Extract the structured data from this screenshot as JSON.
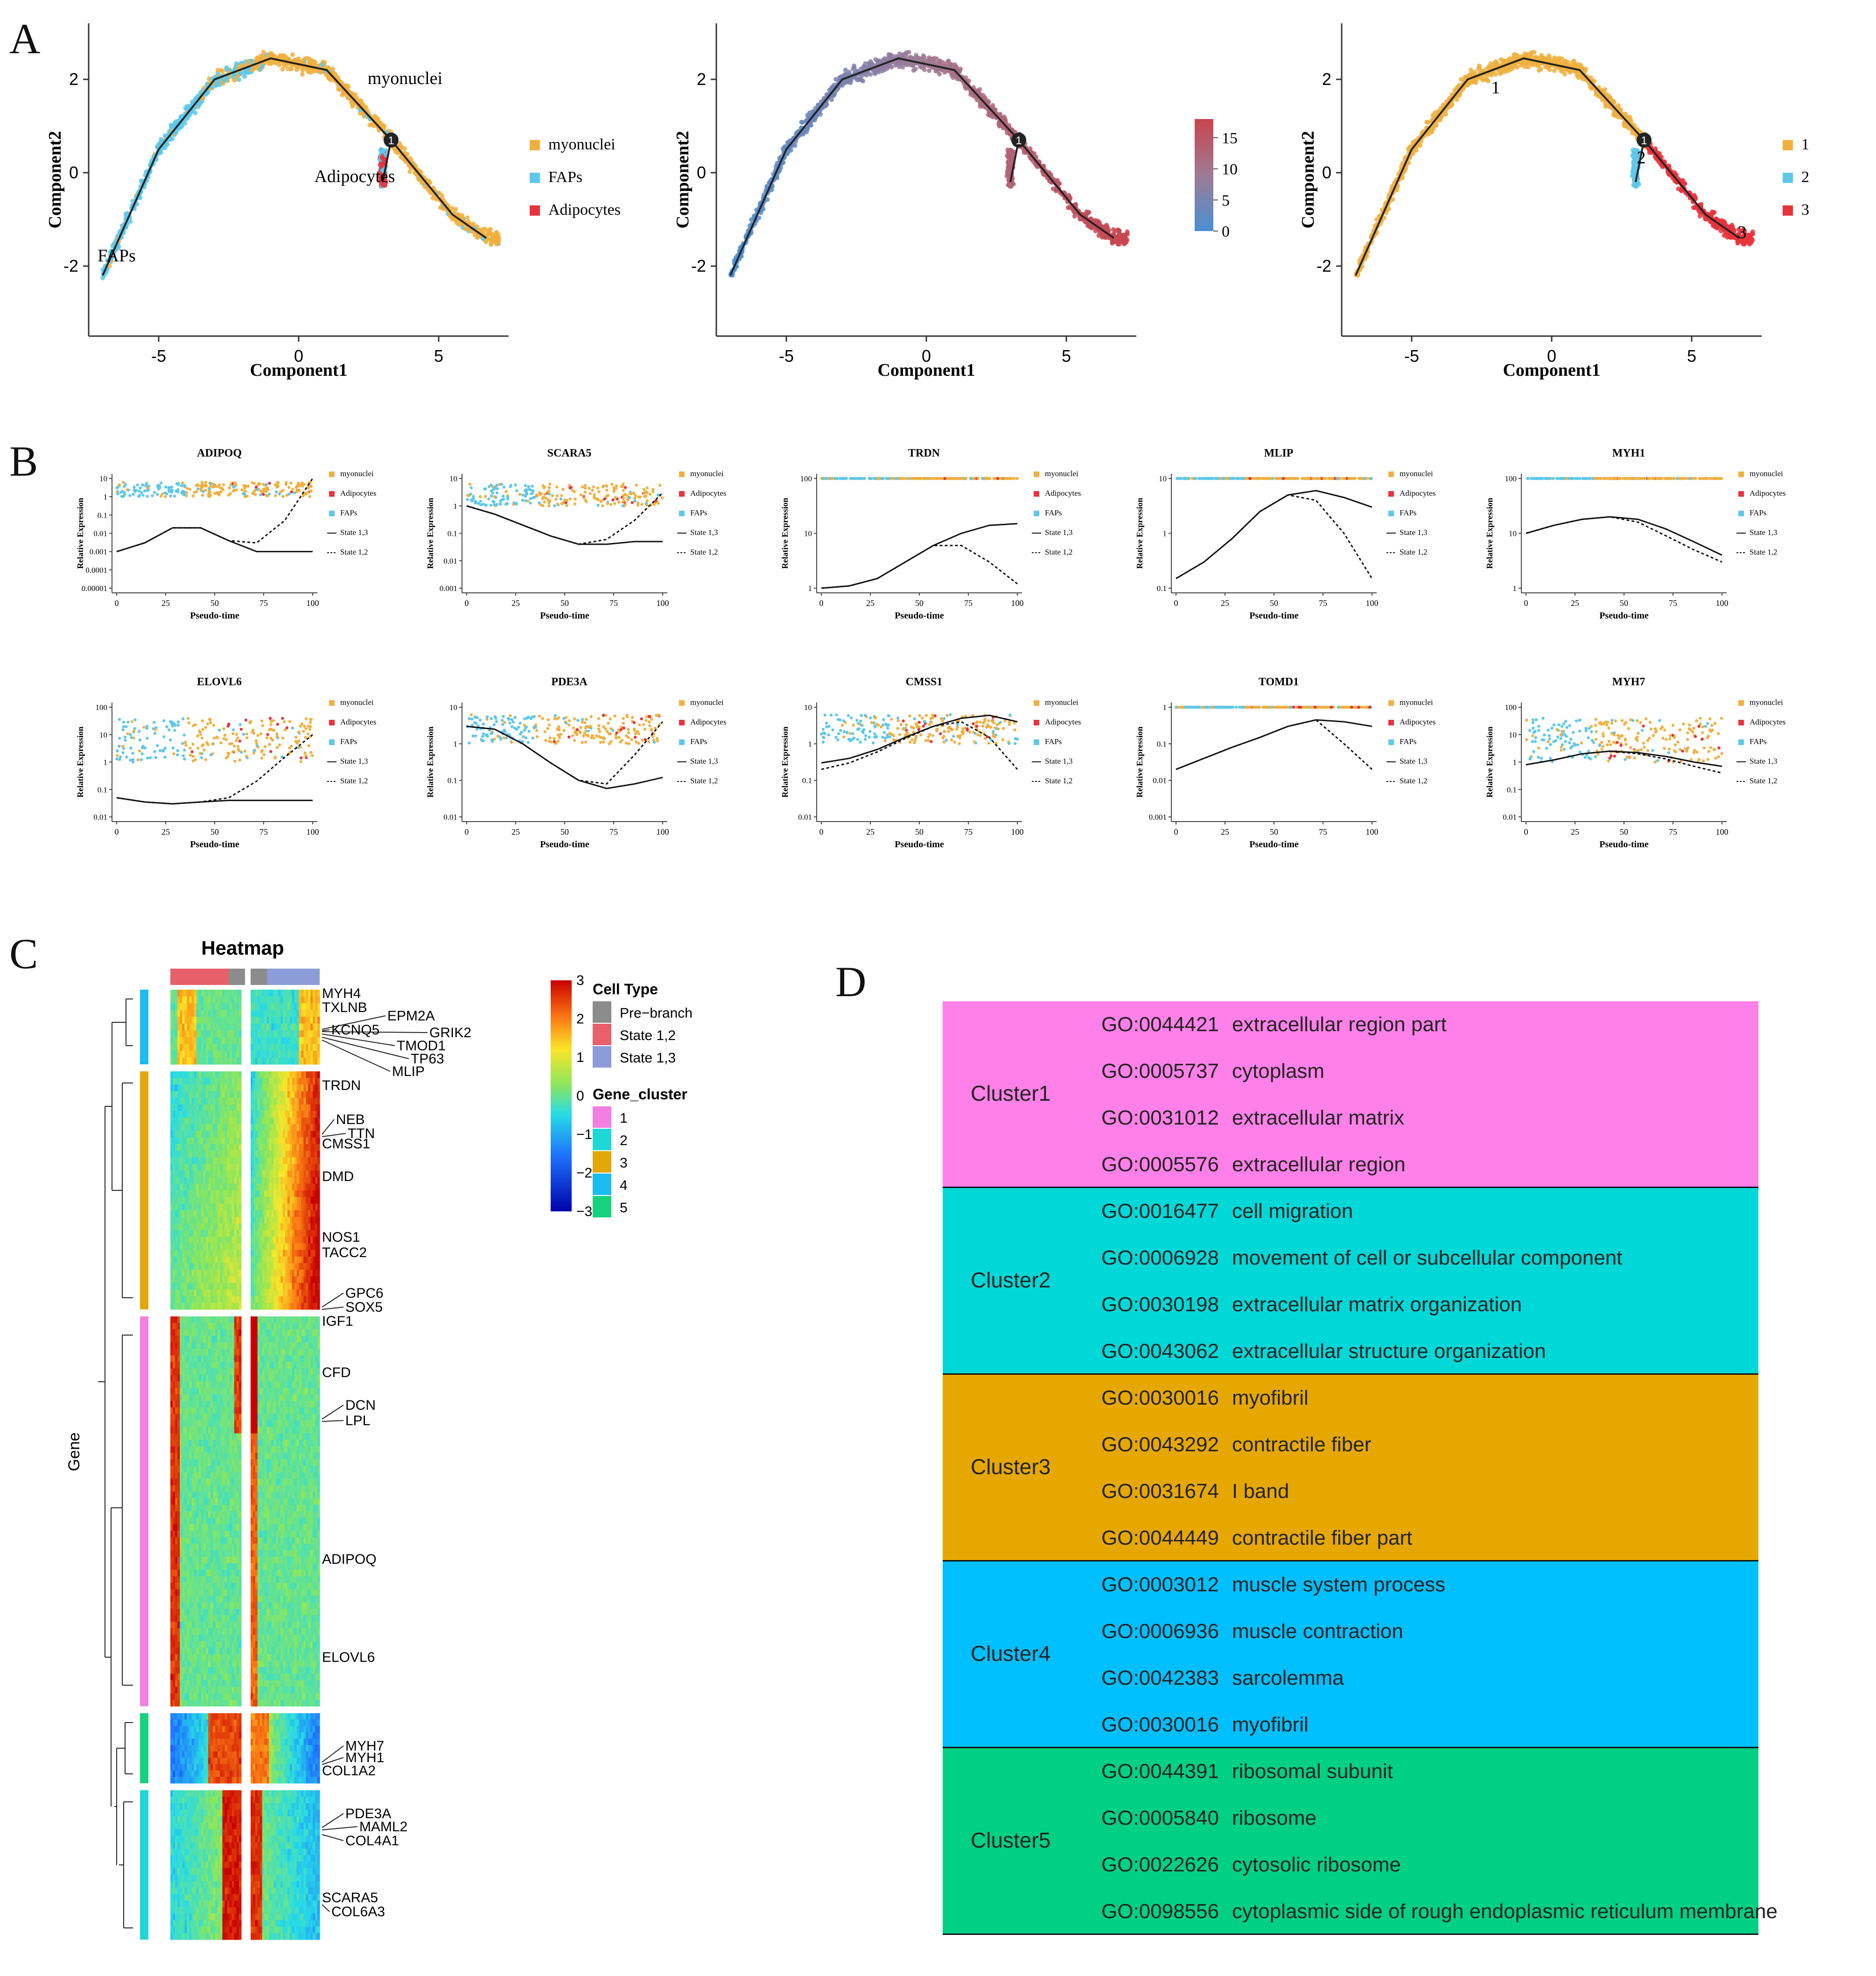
{
  "figure": {
    "panel_labels": [
      "A",
      "B",
      "C",
      "D"
    ]
  },
  "chart_data": [
    {
      "id": "A1",
      "type": "scatter",
      "title": "",
      "xlabel": "Component1",
      "ylabel": "Component2",
      "xlim": [
        -7.5,
        7.5
      ],
      "ylim": [
        -3.5,
        3.2
      ],
      "xticks": [
        -5,
        0,
        5
      ],
      "yticks": [
        -2,
        0,
        2
      ],
      "color_by": "cell type",
      "legend": [
        {
          "label": "myonuclei",
          "color": "#F0B040"
        },
        {
          "label": "FAPs",
          "color": "#5DC8EA"
        },
        {
          "label": "Adipocytes",
          "color": "#E8323C"
        }
      ],
      "annotations": [
        {
          "text": "myonuclei",
          "x": 3.8,
          "y": 1.9
        },
        {
          "text": "Adipocytes",
          "x": 2.0,
          "y": -0.2
        },
        {
          "text": "FAPs",
          "x": -6.5,
          "y": -1.9
        }
      ],
      "branch_point": {
        "label": "1",
        "x": 3.3,
        "y": 0.7
      },
      "trajectory": [
        [
          -7,
          -2.2
        ],
        [
          -5,
          0.5
        ],
        [
          -3,
          2.0
        ],
        [
          -1,
          2.45
        ],
        [
          1,
          2.2
        ],
        [
          3.3,
          0.7
        ],
        [
          5.5,
          -0.9
        ],
        [
          6.7,
          -1.4
        ]
      ],
      "side_branch": [
        [
          3.3,
          0.7
        ],
        [
          3.0,
          -0.2
        ]
      ]
    },
    {
      "id": "A2",
      "type": "scatter",
      "xlabel": "Component1",
      "ylabel": "Component2",
      "xlim": [
        -7.5,
        7.5
      ],
      "ylim": [
        -3.5,
        3.2
      ],
      "xticks": [
        -5,
        0,
        5
      ],
      "yticks": [
        -2,
        0,
        2
      ],
      "color_by": "pseudotime",
      "colorbar": {
        "min": 0,
        "max": 18,
        "ticks": [
          0,
          5,
          10,
          15
        ],
        "low_color": "#4A8FD4",
        "mid_color": "#9E7A94",
        "high_color": "#C8454E"
      },
      "branch_point": {
        "label": "1",
        "x": 3.3,
        "y": 0.7
      }
    },
    {
      "id": "A3",
      "type": "scatter",
      "xlabel": "Component1",
      "ylabel": "Component2",
      "xlim": [
        -7.5,
        7.5
      ],
      "ylim": [
        -3.5,
        3.2
      ],
      "xticks": [
        -5,
        0,
        5
      ],
      "yticks": [
        -2,
        0,
        2
      ],
      "color_by": "state",
      "legend": [
        {
          "label": "1",
          "color": "#F0B040"
        },
        {
          "label": "2",
          "color": "#5DC8EA"
        },
        {
          "label": "3",
          "color": "#E8323C"
        }
      ],
      "annotations": [
        {
          "text": "1",
          "x": -2.0,
          "y": 1.7
        },
        {
          "text": "2",
          "x": 3.2,
          "y": 0.2
        },
        {
          "text": "3",
          "x": 6.8,
          "y": -1.4
        }
      ],
      "branch_point": {
        "label": "1",
        "x": 3.3,
        "y": 0.7
      }
    },
    {
      "id": "B",
      "type": "line",
      "xlabel": "Pseudo-time",
      "ylabel": "Relative Expression",
      "xticks": [
        0,
        25,
        50,
        75,
        100
      ],
      "legend": [
        {
          "label": "myonuclei",
          "color": "#F0B040"
        },
        {
          "label": "Adipocytes",
          "color": "#E8323C"
        },
        {
          "label": "FAPs",
          "color": "#5DC8EA"
        },
        {
          "label": "State 1,3",
          "style": "solid"
        },
        {
          "label": "State 1,2",
          "style": "dashed"
        }
      ],
      "genes": [
        {
          "name": "ADIPOQ",
          "yticks": [
            "10",
            "1",
            "0.1",
            "0.01",
            "0.001",
            "0.0001",
            "0.00001"
          ],
          "state_1_3": [
            0.001,
            0.003,
            0.02,
            0.02,
            0.004,
            0.001,
            0.001,
            0.001
          ],
          "state_1_2": [
            0.001,
            0.003,
            0.02,
            0.02,
            0.004,
            0.003,
            0.05,
            10
          ]
        },
        {
          "name": "SCARA5",
          "yticks": [
            "10",
            "1",
            "0.1",
            "0.01",
            "0.001"
          ],
          "state_1_3": [
            1,
            0.5,
            0.2,
            0.08,
            0.04,
            0.04,
            0.05,
            0.05
          ],
          "state_1_2": [
            1,
            0.5,
            0.2,
            0.08,
            0.04,
            0.06,
            0.3,
            3
          ]
        },
        {
          "name": "TRDN",
          "yticks": [
            "100",
            "10",
            "1"
          ],
          "state_1_3": [
            1,
            1.1,
            1.5,
            3,
            6,
            10,
            14,
            15
          ],
          "state_1_2": [
            1,
            1.1,
            1.5,
            3,
            6,
            6,
            3,
            1.2
          ]
        },
        {
          "name": "MLIP",
          "yticks": [
            "10",
            "1",
            "0.1"
          ],
          "state_1_3": [
            0.15,
            0.3,
            0.8,
            2.5,
            5,
            6,
            4.5,
            3
          ],
          "state_1_2": [
            0.15,
            0.3,
            0.8,
            2.5,
            5,
            4,
            1,
            0.15
          ]
        },
        {
          "name": "MYH1",
          "yticks": [
            "100",
            "10",
            "1"
          ],
          "state_1_3": [
            10,
            14,
            18,
            20,
            18,
            12,
            7,
            4
          ],
          "state_1_2": [
            10,
            14,
            18,
            20,
            16,
            9,
            5,
            3
          ]
        },
        {
          "name": "ELOVL6",
          "yticks": [
            "100",
            "10",
            "1",
            "0.1",
            "0.01"
          ],
          "state_1_3": [
            0.05,
            0.035,
            0.03,
            0.035,
            0.04,
            0.04,
            0.04,
            0.04
          ],
          "state_1_2": [
            0.05,
            0.035,
            0.03,
            0.035,
            0.05,
            0.2,
            1.5,
            10
          ]
        },
        {
          "name": "PDE3A",
          "yticks": [
            "10",
            "1",
            "0.1",
            "0.01"
          ],
          "state_1_3": [
            3,
            2.5,
            1,
            0.3,
            0.1,
            0.06,
            0.08,
            0.12
          ],
          "state_1_2": [
            3,
            2.5,
            1,
            0.3,
            0.1,
            0.08,
            0.5,
            4
          ]
        },
        {
          "name": "CMSS1",
          "yticks": [
            "10",
            "1",
            "0.1",
            "0.01"
          ],
          "state_1_3": [
            0.3,
            0.4,
            0.7,
            1.5,
            3,
            5,
            6,
            4
          ],
          "state_1_2": [
            0.2,
            0.3,
            0.6,
            1.4,
            3,
            4,
            1.5,
            0.2
          ]
        },
        {
          "name": "TOMD1",
          "yticks": [
            "1",
            "0.1",
            "0.01",
            "0.001"
          ],
          "state_1_3": [
            0.02,
            0.04,
            0.08,
            0.15,
            0.3,
            0.45,
            0.4,
            0.3
          ],
          "state_1_2": [
            0.02,
            0.04,
            0.08,
            0.15,
            0.3,
            0.45,
            0.1,
            0.02
          ]
        },
        {
          "name": "MYH7",
          "yticks": [
            "100",
            "10",
            "1",
            "0.1",
            "0.01"
          ],
          "state_1_3": [
            0.8,
            1.2,
            2,
            2.5,
            2.2,
            1.6,
            1,
            0.7
          ],
          "state_1_2": [
            0.8,
            1.2,
            2,
            2.5,
            2,
            1.3,
            0.7,
            0.4
          ]
        }
      ]
    },
    {
      "id": "C",
      "type": "heatmap",
      "title": "Heatmap",
      "ylabel": "Gene",
      "colorbar": {
        "min": -3,
        "max": 3,
        "ticks": [
          "3",
          "2",
          "1",
          "0",
          "−1",
          "−2",
          "−3"
        ]
      },
      "legend_cell_type": {
        "title": "Cell Type",
        "items": [
          {
            "label": "Pre−branch",
            "color": "#8C8C8C"
          },
          {
            "label": "State 1,2",
            "color": "#E8606A"
          },
          {
            "label": "State 1,3",
            "color": "#8C9CD8"
          }
        ]
      },
      "legend_gene_cluster": {
        "title": "Gene_cluster",
        "items": [
          {
            "label": "1",
            "color": "#F380E0"
          },
          {
            "label": "2",
            "color": "#1FD7D4"
          },
          {
            "label": "3",
            "color": "#E3A808"
          },
          {
            "label": "4",
            "color": "#1BBCF0"
          },
          {
            "label": "5",
            "color": "#17D27D"
          }
        ]
      },
      "gene_labels": [
        "MYH4",
        "TXLNB",
        "EPM2A",
        "GRIK2",
        "KCNQ5",
        "TMOD1",
        "TP63",
        "MLIP",
        "TRDN",
        "NEB",
        "TTN",
        "CMSS1",
        "DMD",
        "NOS1",
        "TACC2",
        "GPC6",
        "SOX5",
        "IGF1",
        "CFD",
        "DCN",
        "LPL",
        "ADIPOQ",
        "ELOVL6",
        "MYH7",
        "MYH1",
        "COL1A2",
        "PDE3A",
        "MAML2",
        "COL4A1",
        "SCARA5",
        "COL6A3"
      ]
    }
  ],
  "go_table": {
    "clusters": [
      {
        "name": "Cluster1",
        "color": "#FF80E8",
        "terms": [
          {
            "id": "GO:0044421",
            "term": "extracellular region part"
          },
          {
            "id": "GO:0005737",
            "term": "cytoplasm"
          },
          {
            "id": "GO:0031012",
            "term": "extracellular matrix"
          },
          {
            "id": "GO:0005576",
            "term": "extracellular region"
          }
        ]
      },
      {
        "name": "Cluster2",
        "color": "#00D8D8",
        "terms": [
          {
            "id": "GO:0016477",
            "term": "cell migration"
          },
          {
            "id": "GO:0006928",
            "term": "movement of cell or subcellular component"
          },
          {
            "id": "GO:0030198",
            "term": "extracellular matrix organization"
          },
          {
            "id": "GO:0043062",
            "term": "extracellular structure organization"
          }
        ]
      },
      {
        "name": "Cluster3",
        "color": "#E6A800",
        "terms": [
          {
            "id": "GO:0030016",
            "term": "myofibril"
          },
          {
            "id": "GO:0043292",
            "term": "contractile fiber"
          },
          {
            "id": "GO:0031674",
            "term": "I band"
          },
          {
            "id": "GO:0044449",
            "term": "contractile fiber part"
          }
        ]
      },
      {
        "name": "Cluster4",
        "color": "#00BFFF",
        "terms": [
          {
            "id": "GO:0003012",
            "term": "muscle system process"
          },
          {
            "id": "GO:0006936",
            "term": "muscle contraction"
          },
          {
            "id": "GO:0042383",
            "term": "sarcolemma"
          },
          {
            "id": "GO:0030016",
            "term": "myofibril"
          }
        ]
      },
      {
        "name": "Cluster5",
        "color": "#00D084",
        "terms": [
          {
            "id": "GO:0044391",
            "term": "ribosomal subunit"
          },
          {
            "id": "GO:0005840",
            "term": "ribosome"
          },
          {
            "id": "GO:0022626",
            "term": "cytosolic ribosome"
          },
          {
            "id": "GO:0098556",
            "term": "cytoplasmic side of rough endoplasmic reticulum membrane"
          }
        ]
      }
    ]
  }
}
